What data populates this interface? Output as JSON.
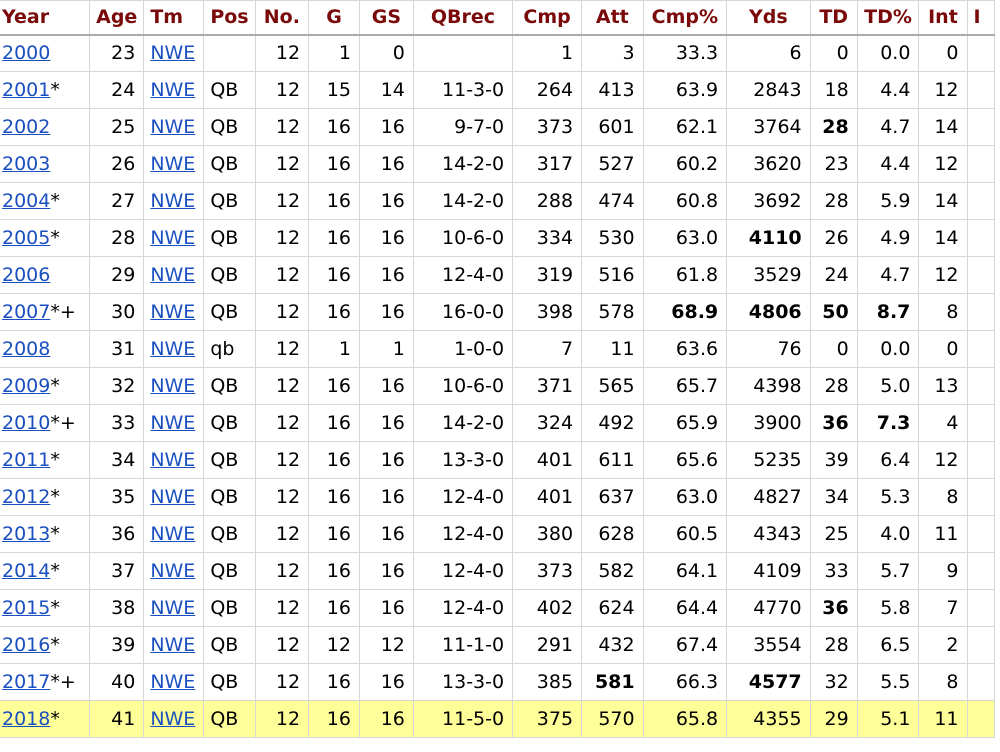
{
  "headers": [
    "Year",
    "Age",
    "Tm",
    "Pos",
    "No.",
    "G",
    "GS",
    "QBrec",
    "Cmp",
    "Att",
    "Cmp%",
    "Yds",
    "TD",
    "TD%",
    "Int",
    "I"
  ],
  "rows": [
    {
      "year": "2000",
      "mark": "",
      "age": "23",
      "tm": "NWE",
      "pos": "",
      "no": "12",
      "g": "1",
      "gs": "0",
      "qbrec": "",
      "cmp": "1",
      "att": "3",
      "cmppct": "33.3",
      "yds": "6",
      "td": "0",
      "tdpct": "0.0",
      "int": "0",
      "bold": [],
      "highlight": false
    },
    {
      "year": "2001",
      "mark": "*",
      "age": "24",
      "tm": "NWE",
      "pos": "QB",
      "no": "12",
      "g": "15",
      "gs": "14",
      "qbrec": "11-3-0",
      "cmp": "264",
      "att": "413",
      "cmppct": "63.9",
      "yds": "2843",
      "td": "18",
      "tdpct": "4.4",
      "int": "12",
      "bold": [],
      "highlight": false
    },
    {
      "year": "2002",
      "mark": "",
      "age": "25",
      "tm": "NWE",
      "pos": "QB",
      "no": "12",
      "g": "16",
      "gs": "16",
      "qbrec": "9-7-0",
      "cmp": "373",
      "att": "601",
      "cmppct": "62.1",
      "yds": "3764",
      "td": "28",
      "tdpct": "4.7",
      "int": "14",
      "bold": [
        "td"
      ],
      "highlight": false
    },
    {
      "year": "2003",
      "mark": "",
      "age": "26",
      "tm": "NWE",
      "pos": "QB",
      "no": "12",
      "g": "16",
      "gs": "16",
      "qbrec": "14-2-0",
      "cmp": "317",
      "att": "527",
      "cmppct": "60.2",
      "yds": "3620",
      "td": "23",
      "tdpct": "4.4",
      "int": "12",
      "bold": [],
      "highlight": false
    },
    {
      "year": "2004",
      "mark": "*",
      "age": "27",
      "tm": "NWE",
      "pos": "QB",
      "no": "12",
      "g": "16",
      "gs": "16",
      "qbrec": "14-2-0",
      "cmp": "288",
      "att": "474",
      "cmppct": "60.8",
      "yds": "3692",
      "td": "28",
      "tdpct": "5.9",
      "int": "14",
      "bold": [],
      "highlight": false
    },
    {
      "year": "2005",
      "mark": "*",
      "age": "28",
      "tm": "NWE",
      "pos": "QB",
      "no": "12",
      "g": "16",
      "gs": "16",
      "qbrec": "10-6-0",
      "cmp": "334",
      "att": "530",
      "cmppct": "63.0",
      "yds": "4110",
      "td": "26",
      "tdpct": "4.9",
      "int": "14",
      "bold": [
        "yds"
      ],
      "highlight": false
    },
    {
      "year": "2006",
      "mark": "",
      "age": "29",
      "tm": "NWE",
      "pos": "QB",
      "no": "12",
      "g": "16",
      "gs": "16",
      "qbrec": "12-4-0",
      "cmp": "319",
      "att": "516",
      "cmppct": "61.8",
      "yds": "3529",
      "td": "24",
      "tdpct": "4.7",
      "int": "12",
      "bold": [],
      "highlight": false
    },
    {
      "year": "2007",
      "mark": "*+",
      "age": "30",
      "tm": "NWE",
      "pos": "QB",
      "no": "12",
      "g": "16",
      "gs": "16",
      "qbrec": "16-0-0",
      "cmp": "398",
      "att": "578",
      "cmppct": "68.9",
      "yds": "4806",
      "td": "50",
      "tdpct": "8.7",
      "int": "8",
      "bold": [
        "cmppct",
        "yds",
        "td",
        "tdpct"
      ],
      "highlight": false
    },
    {
      "year": "2008",
      "mark": "",
      "age": "31",
      "tm": "NWE",
      "pos": "qb",
      "no": "12",
      "g": "1",
      "gs": "1",
      "qbrec": "1-0-0",
      "cmp": "7",
      "att": "11",
      "cmppct": "63.6",
      "yds": "76",
      "td": "0",
      "tdpct": "0.0",
      "int": "0",
      "bold": [],
      "highlight": false
    },
    {
      "year": "2009",
      "mark": "*",
      "age": "32",
      "tm": "NWE",
      "pos": "QB",
      "no": "12",
      "g": "16",
      "gs": "16",
      "qbrec": "10-6-0",
      "cmp": "371",
      "att": "565",
      "cmppct": "65.7",
      "yds": "4398",
      "td": "28",
      "tdpct": "5.0",
      "int": "13",
      "bold": [],
      "highlight": false
    },
    {
      "year": "2010",
      "mark": "*+",
      "age": "33",
      "tm": "NWE",
      "pos": "QB",
      "no": "12",
      "g": "16",
      "gs": "16",
      "qbrec": "14-2-0",
      "cmp": "324",
      "att": "492",
      "cmppct": "65.9",
      "yds": "3900",
      "td": "36",
      "tdpct": "7.3",
      "int": "4",
      "bold": [
        "td",
        "tdpct"
      ],
      "highlight": false
    },
    {
      "year": "2011",
      "mark": "*",
      "age": "34",
      "tm": "NWE",
      "pos": "QB",
      "no": "12",
      "g": "16",
      "gs": "16",
      "qbrec": "13-3-0",
      "cmp": "401",
      "att": "611",
      "cmppct": "65.6",
      "yds": "5235",
      "td": "39",
      "tdpct": "6.4",
      "int": "12",
      "bold": [],
      "highlight": false
    },
    {
      "year": "2012",
      "mark": "*",
      "age": "35",
      "tm": "NWE",
      "pos": "QB",
      "no": "12",
      "g": "16",
      "gs": "16",
      "qbrec": "12-4-0",
      "cmp": "401",
      "att": "637",
      "cmppct": "63.0",
      "yds": "4827",
      "td": "34",
      "tdpct": "5.3",
      "int": "8",
      "bold": [],
      "highlight": false
    },
    {
      "year": "2013",
      "mark": "*",
      "age": "36",
      "tm": "NWE",
      "pos": "QB",
      "no": "12",
      "g": "16",
      "gs": "16",
      "qbrec": "12-4-0",
      "cmp": "380",
      "att": "628",
      "cmppct": "60.5",
      "yds": "4343",
      "td": "25",
      "tdpct": "4.0",
      "int": "11",
      "bold": [],
      "highlight": false
    },
    {
      "year": "2014",
      "mark": "*",
      "age": "37",
      "tm": "NWE",
      "pos": "QB",
      "no": "12",
      "g": "16",
      "gs": "16",
      "qbrec": "12-4-0",
      "cmp": "373",
      "att": "582",
      "cmppct": "64.1",
      "yds": "4109",
      "td": "33",
      "tdpct": "5.7",
      "int": "9",
      "bold": [],
      "highlight": false
    },
    {
      "year": "2015",
      "mark": "*",
      "age": "38",
      "tm": "NWE",
      "pos": "QB",
      "no": "12",
      "g": "16",
      "gs": "16",
      "qbrec": "12-4-0",
      "cmp": "402",
      "att": "624",
      "cmppct": "64.4",
      "yds": "4770",
      "td": "36",
      "tdpct": "5.8",
      "int": "7",
      "bold": [
        "td"
      ],
      "highlight": false
    },
    {
      "year": "2016",
      "mark": "*",
      "age": "39",
      "tm": "NWE",
      "pos": "QB",
      "no": "12",
      "g": "12",
      "gs": "12",
      "qbrec": "11-1-0",
      "cmp": "291",
      "att": "432",
      "cmppct": "67.4",
      "yds": "3554",
      "td": "28",
      "tdpct": "6.5",
      "int": "2",
      "bold": [],
      "highlight": false
    },
    {
      "year": "2017",
      "mark": "*+",
      "age": "40",
      "tm": "NWE",
      "pos": "QB",
      "no": "12",
      "g": "16",
      "gs": "16",
      "qbrec": "13-3-0",
      "cmp": "385",
      "att": "581",
      "cmppct": "66.3",
      "yds": "4577",
      "td": "32",
      "tdpct": "5.5",
      "int": "8",
      "bold": [
        "att",
        "yds"
      ],
      "highlight": false
    },
    {
      "year": "2018",
      "mark": "*",
      "age": "41",
      "tm": "NWE",
      "pos": "QB",
      "no": "12",
      "g": "16",
      "gs": "16",
      "qbrec": "11-5-0",
      "cmp": "375",
      "att": "570",
      "cmppct": "65.8",
      "yds": "4355",
      "td": "29",
      "tdpct": "5.1",
      "int": "11",
      "bold": [],
      "highlight": true
    }
  ],
  "colors": {
    "header_text": "#7a0a0a",
    "link": "#1a4fbf",
    "highlight_row": "#ffff99",
    "border": "#d7d7d7"
  }
}
